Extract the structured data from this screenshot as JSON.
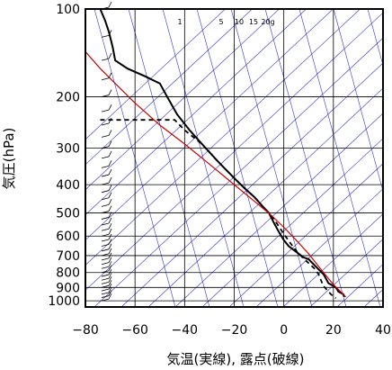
{
  "chart_data": {
    "type": "line",
    "title": "",
    "xlabel": "気温(実線), 露点(破線)",
    "ylabel": "気圧(hPa)",
    "x_ticks": [
      -80,
      -60,
      -40,
      -20,
      0,
      20,
      40
    ],
    "y_ticks": [
      100,
      200,
      300,
      400,
      500,
      600,
      700,
      800,
      900,
      1000
    ],
    "xlim": [
      -80,
      40
    ],
    "ylim": [
      1050,
      100
    ],
    "y_scale": "log",
    "grid": true,
    "mixing_ratio_labels": [
      "1",
      "5",
      "10",
      "15",
      "20g"
    ],
    "colors": {
      "temperature": "#000000",
      "dewpoint": "#000000",
      "parcel": "#cc0000",
      "background_lines": "#3333cc",
      "grid": "#000000"
    },
    "series": [
      {
        "style": "solid",
        "points": [
          [
            -74,
            100
          ],
          [
            -72,
            110
          ],
          [
            -70.5,
            120
          ],
          [
            -69,
            135
          ],
          [
            -68,
            150
          ],
          [
            -63,
            160
          ],
          [
            -56,
            170
          ],
          [
            -50,
            180
          ],
          [
            -47,
            200
          ],
          [
            -43,
            230
          ],
          [
            -38,
            260
          ],
          [
            -33,
            290
          ],
          [
            -27,
            330
          ],
          [
            -20,
            380
          ],
          [
            -16,
            410
          ],
          [
            -12,
            440
          ],
          [
            -8,
            480
          ],
          [
            -6,
            500
          ],
          [
            -4,
            540
          ],
          [
            -2,
            580
          ],
          [
            0,
            620
          ],
          [
            2,
            650
          ],
          [
            5,
            680
          ],
          [
            8,
            710
          ],
          [
            10,
            720
          ],
          [
            12,
            750
          ],
          [
            14,
            780
          ],
          [
            16,
            810
          ],
          [
            17,
            840
          ],
          [
            18,
            870
          ],
          [
            21,
            900
          ],
          [
            22,
            930
          ],
          [
            24,
            950
          ],
          [
            24.5,
            970
          ]
        ]
      },
      {
        "style": "dashed",
        "points": [
          [
            -74,
            240
          ],
          [
            -44,
            240
          ],
          [
            -40,
            260
          ],
          [
            -33,
            290
          ],
          [
            -27,
            330
          ],
          [
            -20,
            380
          ],
          [
            -16,
            410
          ],
          [
            -12,
            440
          ],
          [
            -8,
            480
          ],
          [
            -6,
            500
          ],
          [
            -3,
            540
          ],
          [
            0,
            590
          ],
          [
            3,
            640
          ],
          [
            6,
            690
          ],
          [
            9,
            730
          ],
          [
            12,
            770
          ],
          [
            14,
            810
          ],
          [
            15,
            850
          ],
          [
            16,
            890
          ],
          [
            19,
            950
          ],
          [
            21,
            980
          ]
        ]
      },
      {
        "style": "solid",
        "points": [
          [
            -80,
            140
          ],
          [
            -74,
            160
          ],
          [
            -68,
            180
          ],
          [
            -60,
            210
          ],
          [
            -50,
            250
          ],
          [
            -40,
            290
          ],
          [
            -30,
            340
          ],
          [
            -20,
            400
          ],
          [
            -10,
            470
          ],
          [
            -5,
            510
          ],
          [
            0,
            560
          ],
          [
            5,
            620
          ],
          [
            10,
            690
          ],
          [
            15,
            780
          ],
          [
            20,
            880
          ],
          [
            24,
            950
          ],
          [
            25,
            970
          ]
        ]
      }
    ]
  }
}
